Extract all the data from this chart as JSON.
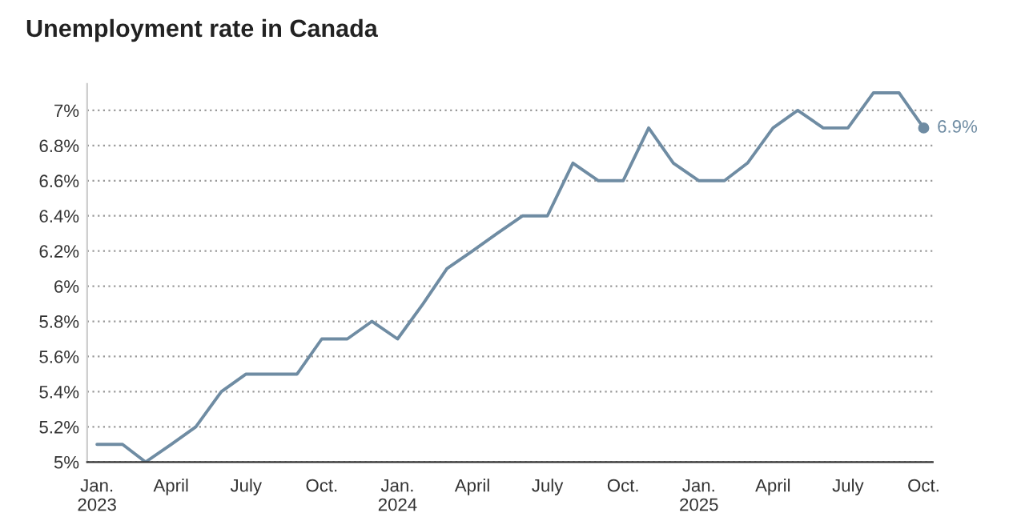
{
  "chart_data": {
    "type": "line",
    "title": "Unemployment rate in Canada",
    "x": [
      "2023-01",
      "2023-02",
      "2023-03",
      "2023-04",
      "2023-05",
      "2023-06",
      "2023-07",
      "2023-08",
      "2023-09",
      "2023-10",
      "2023-11",
      "2023-12",
      "2024-01",
      "2024-02",
      "2024-03",
      "2024-04",
      "2024-05",
      "2024-06",
      "2024-07",
      "2024-08",
      "2024-09",
      "2024-10",
      "2024-11",
      "2024-12",
      "2025-01",
      "2025-02",
      "2025-03",
      "2025-04",
      "2025-05",
      "2025-06",
      "2025-07",
      "2025-08",
      "2025-09",
      "2025-10"
    ],
    "series": [
      {
        "color": "#6f8ca3",
        "values": [
          5.1,
          5.1,
          5.0,
          5.1,
          5.2,
          5.4,
          5.5,
          5.5,
          5.5,
          5.7,
          5.7,
          5.8,
          5.7,
          5.9,
          6.1,
          6.2,
          6.3,
          6.4,
          6.4,
          6.7,
          6.6,
          6.6,
          6.9,
          6.7,
          6.6,
          6.6,
          6.7,
          6.9,
          7.0,
          6.9,
          6.9,
          7.1,
          7.1,
          6.9
        ]
      }
    ],
    "xlim": [
      "2022-12-20",
      "2025-10-12"
    ],
    "xticks": [
      {
        "value": "2023-01",
        "label": "Jan.\n2023"
      },
      {
        "value": "2023-04",
        "label": "April"
      },
      {
        "value": "2023-07",
        "label": "July"
      },
      {
        "value": "2023-10",
        "label": "Oct."
      },
      {
        "value": "2024-01",
        "label": "Jan.\n2024"
      },
      {
        "value": "2024-04",
        "label": "April"
      },
      {
        "value": "2024-07",
        "label": "July"
      },
      {
        "value": "2024-10",
        "label": "Oct."
      },
      {
        "value": "2025-01",
        "label": "Jan.\n2025"
      },
      {
        "value": "2025-04",
        "label": "April"
      },
      {
        "value": "2025-07",
        "label": "July"
      },
      {
        "value": "2025-10",
        "label": "Oct."
      }
    ],
    "ylim": [
      5,
      7.15
    ],
    "yticks": [
      {
        "value": 5,
        "label": "5%"
      },
      {
        "value": 5.2,
        "label": "5.2%"
      },
      {
        "value": 5.4,
        "label": "5.4%"
      },
      {
        "value": 5.6,
        "label": "5.6%"
      },
      {
        "value": 5.8,
        "label": "5.8%"
      },
      {
        "value": 6,
        "label": "6%"
      },
      {
        "value": 6.2,
        "label": "6.2%"
      },
      {
        "value": 6.4,
        "label": "6.4%"
      },
      {
        "value": 6.6,
        "label": "6.6%"
      },
      {
        "value": 6.8,
        "label": "6.8%"
      },
      {
        "value": 7,
        "label": "7%"
      }
    ],
    "grid": "y",
    "marker": "none",
    "line_style": "solid",
    "annotations": [
      {
        "text": "6.9%",
        "x": "2025-10",
        "y": 6.9
      }
    ]
  }
}
